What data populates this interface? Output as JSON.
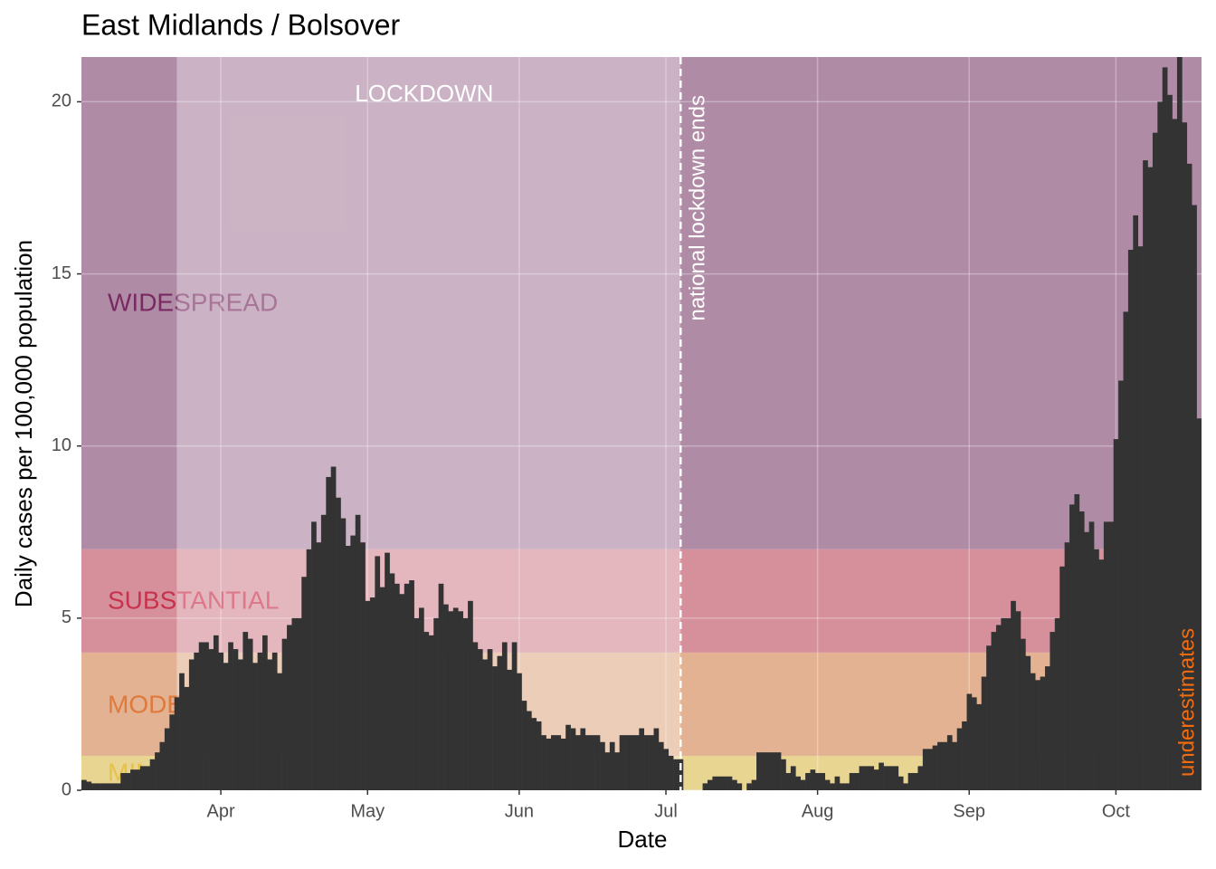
{
  "chart_data": {
    "type": "bar",
    "title": "East Midlands / Bolsover",
    "x_label": "Date",
    "y_label": "Daily cases per 100,000 population",
    "color": "#333333",
    "ylim": [
      0,
      21.3
    ],
    "yticks": [
      0,
      5,
      10,
      15,
      20
    ],
    "grid": true,
    "zones": [
      {
        "label": "MINIMAL",
        "lower": 0,
        "color": "#e8d592",
        "label_color": "#e6c24a"
      },
      {
        "label": "MODERATE",
        "lower": 1,
        "color": "#e2b292",
        "label_color": "#e07a3c"
      },
      {
        "label": "SUBSTANTIAL",
        "lower": 4,
        "color": "#d6909b",
        "label_color": "#c8324e"
      },
      {
        "label": "WIDESPREAD",
        "lower": 7,
        "color": "#b08ba6",
        "label_color": "#7a2a62"
      }
    ],
    "lockdown": {
      "label": "LOCKDOWN",
      "start": 19,
      "end": 122,
      "end_label": "national lockdown ends"
    },
    "note": "underestimates",
    "categories": [
      null,
      null,
      null,
      null,
      null,
      null,
      null,
      null,
      null,
      null,
      null,
      null,
      null,
      null,
      null,
      null,
      null,
      null,
      null,
      null,
      null,
      null,
      null,
      null,
      null,
      null,
      null,
      null,
      "Apr",
      null,
      null,
      null,
      null,
      null,
      null,
      null,
      null,
      null,
      null,
      null,
      null,
      null,
      null,
      null,
      null,
      null,
      null,
      null,
      null,
      null,
      null,
      null,
      null,
      null,
      null,
      null,
      null,
      null,
      "May",
      null,
      null,
      null,
      null,
      null,
      null,
      null,
      null,
      null,
      null,
      null,
      null,
      null,
      null,
      null,
      null,
      null,
      null,
      null,
      null,
      null,
      null,
      null,
      null,
      null,
      null,
      null,
      null,
      null,
      null,
      "Jun",
      null,
      null,
      null,
      null,
      null,
      null,
      null,
      null,
      null,
      null,
      null,
      null,
      null,
      null,
      null,
      null,
      null,
      null,
      null,
      null,
      null,
      null,
      null,
      null,
      null,
      null,
      null,
      null,
      null,
      "Jul",
      null,
      null,
      null,
      null,
      null,
      null,
      null,
      null,
      null,
      null,
      null,
      null,
      null,
      null,
      null,
      null,
      null,
      null,
      null,
      null,
      null,
      null,
      null,
      null,
      null,
      null,
      null,
      null,
      null,
      null,
      "Aug",
      null,
      null,
      null,
      null,
      null,
      null,
      null,
      null,
      null,
      null,
      null,
      null,
      null,
      null,
      null,
      null,
      null,
      null,
      null,
      null,
      null,
      null,
      null,
      null,
      null,
      null,
      null,
      null,
      null,
      null,
      "Sep",
      null,
      null,
      null,
      null,
      null,
      null,
      null,
      null,
      null,
      null,
      null,
      null,
      null,
      null,
      null,
      null,
      null,
      null,
      null,
      null,
      null,
      null,
      null,
      null,
      null,
      null,
      null,
      null,
      null,
      "Oct",
      null,
      null,
      null,
      null,
      null,
      null,
      null,
      null,
      null,
      null,
      null,
      null,
      null,
      null,
      null,
      null,
      null
    ],
    "values": [
      0.3,
      0.25,
      0.2,
      0.2,
      0.2,
      0.2,
      0.2,
      0.2,
      0.5,
      0.5,
      0.6,
      0.6,
      0.7,
      0.7,
      0.9,
      1.1,
      1.4,
      1.8,
      2.2,
      2.7,
      3.4,
      3.0,
      3.8,
      4.0,
      4.3,
      4.3,
      4.1,
      4.5,
      4.0,
      3.7,
      4.3,
      4.1,
      3.8,
      4.6,
      4.4,
      3.7,
      4.0,
      4.5,
      3.8,
      4.0,
      3.4,
      4.4,
      4.8,
      5.0,
      5.0,
      6.2,
      7.0,
      7.8,
      7.2,
      8.0,
      9.1,
      9.4,
      8.5,
      7.9,
      7.1,
      7.4,
      8.0,
      7.2,
      5.5,
      5.6,
      6.8,
      5.9,
      6.9,
      6.3,
      6.0,
      5.7,
      6.0,
      6.1,
      5.0,
      5.3,
      4.6,
      4.5,
      5.0,
      6.0,
      5.4,
      5.2,
      5.3,
      5.2,
      5.0,
      5.5,
      4.3,
      4.1,
      3.8,
      4.1,
      3.6,
      3.9,
      4.3,
      3.5,
      4.3,
      3.4,
      2.6,
      2.3,
      2.1,
      2.0,
      1.6,
      1.5,
      1.6,
      1.6,
      1.5,
      1.9,
      1.8,
      1.6,
      1.8,
      1.6,
      1.6,
      1.6,
      1.4,
      1.1,
      1.4,
      1.1,
      1.6,
      1.6,
      1.6,
      1.6,
      1.8,
      1.6,
      1.6,
      1.8,
      1.4,
      1.2,
      1.0,
      0.9,
      0.9,
      0,
      0,
      0,
      0,
      0.2,
      0.3,
      0.4,
      0.4,
      0.4,
      0.4,
      0.3,
      0.2,
      0,
      0.2,
      0.3,
      1.1,
      1.1,
      1.1,
      1.1,
      1.1,
      0.9,
      0.5,
      0.7,
      0.4,
      0.3,
      0.5,
      0.6,
      0.5,
      0.5,
      0.3,
      0.2,
      0.4,
      0.2,
      0.2,
      0.5,
      0.5,
      0.7,
      0.7,
      0.7,
      0.6,
      0.8,
      0.7,
      0.7,
      0.7,
      0.4,
      0.2,
      0.5,
      0.5,
      0.7,
      1.2,
      1.2,
      1.3,
      1.4,
      1.4,
      1.6,
      1.4,
      1.8,
      2.0,
      2.8,
      2.7,
      2.5,
      3.3,
      4.2,
      4.6,
      4.8,
      5.0,
      5.0,
      5.5,
      5.2,
      4.4,
      3.9,
      3.4,
      3.2,
      3.3,
      3.6,
      4.6,
      5.0,
      6.5,
      7.2,
      8.3,
      8.6,
      8.1,
      7.5,
      7.8,
      7.0,
      6.7,
      7.8,
      7.8,
      10.2,
      11.9,
      13.9,
      15.7,
      16.7,
      15.8,
      18.3,
      18.1,
      19.1,
      20.0,
      21.0,
      20.2,
      19.5,
      21.3,
      19.4,
      18.2,
      17.0,
      10.8
    ]
  }
}
